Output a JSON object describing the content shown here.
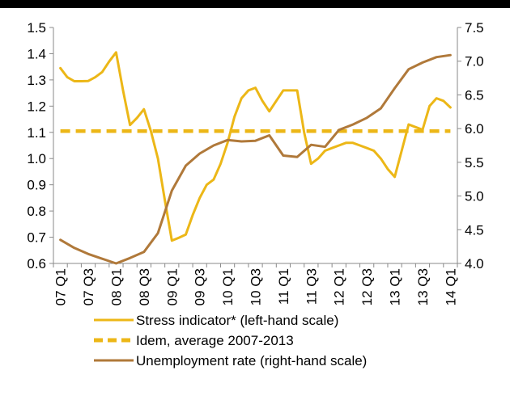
{
  "chart_data": {
    "type": "line",
    "categories": [
      "07 Q1",
      "07 Q2",
      "07 Q3",
      "07 Q4",
      "08 Q1",
      "08 Q2",
      "08 Q3",
      "08 Q4",
      "09 Q1",
      "09 Q2",
      "09 Q3",
      "09 Q4",
      "10 Q1",
      "10 Q2",
      "10 Q3",
      "10 Q4",
      "11 Q1",
      "11 Q2",
      "11 Q3",
      "11 Q4",
      "12 Q1",
      "12 Q2",
      "12 Q3",
      "12 Q4",
      "13 Q1",
      "13 Q2",
      "13 Q3",
      "13 Q4",
      "14 Q1"
    ],
    "tick_labels": [
      "07 Q1",
      "07 Q3",
      "08 Q1",
      "08 Q3",
      "09 Q1",
      "09 Q3",
      "10 Q1",
      "10 Q3",
      "11 Q1",
      "11 Q3",
      "12 Q1",
      "12 Q3",
      "13 Q1",
      "13 Q3",
      "14 Q1"
    ],
    "y_left": {
      "min": 0.6,
      "max": 1.5,
      "ticks": [
        "0.6",
        "0.7",
        "0.8",
        "0.9",
        "1.0",
        "1.1",
        "1.2",
        "1.3",
        "1.4",
        "1.5"
      ]
    },
    "y_right": {
      "min": 4.0,
      "max": 7.5,
      "ticks": [
        "4.0",
        "4.5",
        "5.0",
        "5.5",
        "6.0",
        "6.5",
        "7.0",
        "7.5"
      ]
    },
    "grid": false,
    "legend_position": "bottom",
    "series": [
      {
        "name": "Stress indicator* (left-hand scale)",
        "axis": "left",
        "color": "#ECB717",
        "style": "solid",
        "x": [
          0,
          0.5,
          1,
          1.5,
          2,
          2.5,
          3,
          3.5,
          4,
          4.5,
          5,
          5.5,
          6,
          6.5,
          7,
          7.5,
          8,
          8.5,
          9,
          9.5,
          10,
          10.5,
          11,
          11.5,
          12,
          12.5,
          13,
          13.5,
          14,
          14.5,
          15,
          15.5,
          16,
          16.5,
          17,
          17.5,
          18,
          18.5,
          19,
          19.5,
          20,
          20.5,
          21,
          21.5,
          22,
          22.5,
          23,
          23.5,
          24,
          24.5,
          25,
          25.5,
          26,
          26.5,
          27,
          27.5,
          28
        ],
        "values": [
          1.345,
          1.31,
          1.295,
          1.295,
          1.296,
          1.31,
          1.33,
          1.37,
          1.405,
          1.26,
          1.128,
          1.155,
          1.188,
          1.105,
          1.0,
          0.84,
          0.687,
          0.698,
          0.71,
          0.785,
          0.85,
          0.9,
          0.92,
          0.98,
          1.06,
          1.16,
          1.23,
          1.26,
          1.27,
          1.22,
          1.18,
          1.22,
          1.26,
          1.26,
          1.26,
          1.1,
          0.98,
          1.0,
          1.03,
          1.04,
          1.05,
          1.06,
          1.06,
          1.05,
          1.04,
          1.03,
          1.0,
          0.96,
          0.93,
          1.03,
          1.13,
          1.12,
          1.11,
          1.2,
          1.23,
          1.22,
          1.195
        ]
      },
      {
        "name": "Idem, average 2007-2013",
        "axis": "left",
        "color": "#ECB717",
        "style": "dashed",
        "x": [
          0,
          28
        ],
        "values": [
          1.105,
          1.105
        ]
      },
      {
        "name": "Unemployment rate (right-hand scale)",
        "axis": "right",
        "color": "#B0793A",
        "style": "solid",
        "x": [
          0,
          1,
          2,
          3,
          4,
          5,
          6,
          7,
          8,
          9,
          10,
          11,
          12,
          13,
          14,
          15,
          16,
          17,
          18,
          19,
          20,
          21,
          22,
          23,
          24,
          25,
          26,
          27,
          28
        ],
        "values": [
          4.35,
          4.23,
          4.14,
          4.07,
          4.0,
          4.08,
          4.17,
          4.45,
          5.08,
          5.45,
          5.63,
          5.75,
          5.83,
          5.81,
          5.82,
          5.9,
          5.6,
          5.58,
          5.76,
          5.73,
          5.98,
          6.06,
          6.16,
          6.3,
          6.6,
          6.88,
          6.98,
          7.06,
          7.09
        ]
      }
    ]
  }
}
